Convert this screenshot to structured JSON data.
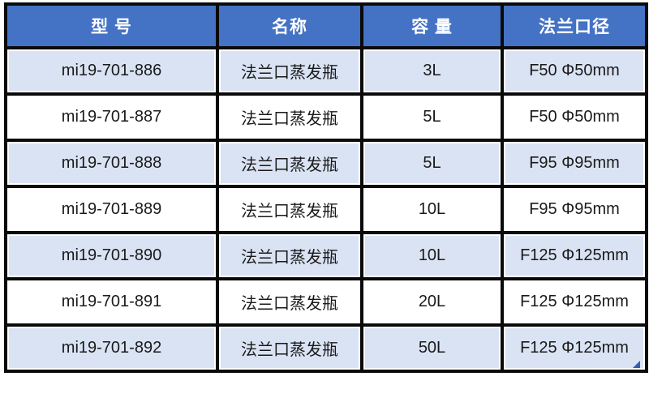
{
  "chart_data": {
    "type": "table",
    "columns": [
      {
        "key": "model",
        "label": "型 号"
      },
      {
        "key": "name",
        "label": "名称"
      },
      {
        "key": "capacity",
        "label": "容 量"
      },
      {
        "key": "flange",
        "label": "法兰口径"
      }
    ],
    "rows": [
      {
        "model": "mi19-701-886",
        "name": "法兰口蒸发瓶",
        "capacity": "3L",
        "flange": "F50 Φ50mm"
      },
      {
        "model": "mi19-701-887",
        "name": "法兰口蒸发瓶",
        "capacity": "5L",
        "flange": "F50 Φ50mm"
      },
      {
        "model": "mi19-701-888",
        "name": "法兰口蒸发瓶",
        "capacity": "5L",
        "flange": "F95 Φ95mm"
      },
      {
        "model": "mi19-701-889",
        "name": "法兰口蒸发瓶",
        "capacity": "10L",
        "flange": "F95 Φ95mm"
      },
      {
        "model": "mi19-701-890",
        "name": "法兰口蒸发瓶",
        "capacity": "10L",
        "flange": "F125 Φ125mm"
      },
      {
        "model": "mi19-701-891",
        "name": "法兰口蒸发瓶",
        "capacity": "20L",
        "flange": "F125 Φ125mm"
      },
      {
        "model": "mi19-701-892",
        "name": "法兰口蒸发瓶",
        "capacity": "50L",
        "flange": "F125 Φ125mm"
      }
    ]
  },
  "colors": {
    "header_bg": "#4472C4",
    "header_text": "#FFFFFF",
    "row_alt_bg": "#DAE3F3",
    "row_bg": "#FFFFFF",
    "grid": "#0A0A0A",
    "text": "#1A1A1A",
    "handle": "#3A5BA9"
  }
}
